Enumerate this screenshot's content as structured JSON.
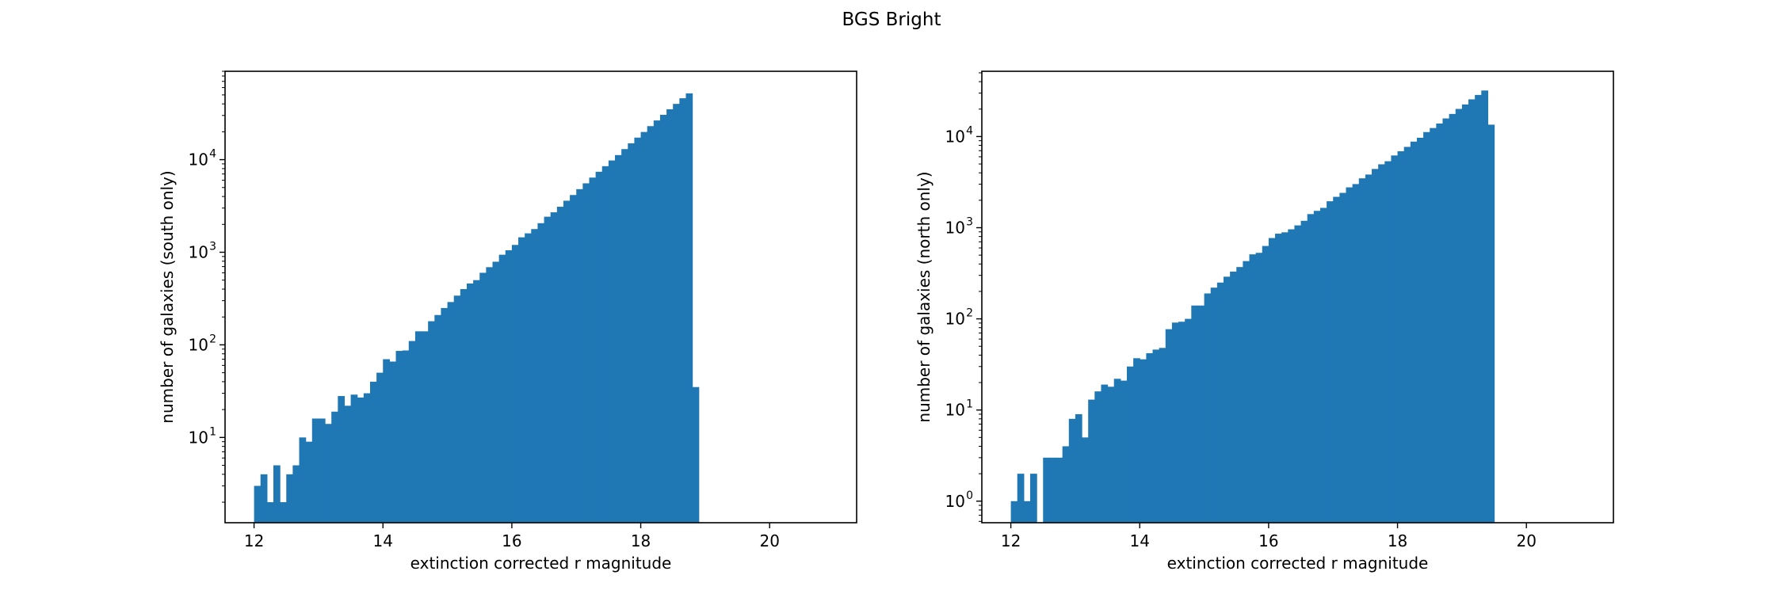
{
  "figure": {
    "title": "BGS Bright"
  },
  "chart_data": [
    {
      "type": "bar",
      "subtype": "histogram",
      "title": "",
      "xlabel": "extinction corrected r magnitude",
      "ylabel": "number of galaxies (south only)",
      "yscale": "log",
      "xlim": [
        11.55,
        21.35
      ],
      "ylim": [
        1.2,
        90000
      ],
      "xticks": [
        12,
        14,
        16,
        18,
        20
      ],
      "xtick_labels": [
        "12",
        "14",
        "16",
        "18",
        "20"
      ],
      "yticks": [
        10,
        100,
        1000,
        10000
      ],
      "ytick_labels": [
        {
          "base": "10",
          "exp": "1"
        },
        {
          "base": "10",
          "exp": "2"
        },
        {
          "base": "10",
          "exp": "3"
        },
        {
          "base": "10",
          "exp": "4"
        }
      ],
      "bin_start": 12.0,
      "bin_width": 0.1,
      "color": "#1f77b4",
      "grid": false,
      "values": [
        3,
        4,
        2,
        5,
        2,
        4,
        5,
        10,
        9,
        16,
        16,
        14,
        19,
        28,
        22,
        29,
        27,
        30,
        40,
        50,
        70,
        66,
        86,
        87,
        110,
        140,
        140,
        180,
        210,
        250,
        290,
        340,
        400,
        460,
        500,
        600,
        690,
        790,
        940,
        1050,
        1200,
        1450,
        1600,
        1780,
        2060,
        2420,
        2700,
        3100,
        3600,
        4150,
        4800,
        5550,
        6400,
        7400,
        8500,
        9800,
        11200,
        13000,
        15000,
        17300,
        19900,
        23000,
        26500,
        30500,
        35000,
        40000,
        46000,
        52000,
        35
      ]
    },
    {
      "type": "bar",
      "subtype": "histogram",
      "title": "",
      "xlabel": "extinction corrected r magnitude",
      "ylabel": "number of galaxies (north only)",
      "yscale": "log",
      "xlim": [
        11.55,
        21.35
      ],
      "ylim": [
        0.58,
        52000
      ],
      "xticks": [
        12,
        14,
        16,
        18,
        20
      ],
      "xtick_labels": [
        "12",
        "14",
        "16",
        "18",
        "20"
      ],
      "yticks": [
        1,
        10,
        100,
        1000,
        10000
      ],
      "ytick_labels": [
        {
          "base": "10",
          "exp": "0"
        },
        {
          "base": "10",
          "exp": "1"
        },
        {
          "base": "10",
          "exp": "2"
        },
        {
          "base": "10",
          "exp": "3"
        },
        {
          "base": "10",
          "exp": "4"
        }
      ],
      "bin_start": 12.0,
      "bin_width": 0.1,
      "color": "#1f77b4",
      "grid": false,
      "values": [
        1,
        2,
        1,
        2,
        0,
        3,
        3,
        3,
        4,
        8,
        9,
        5,
        13,
        16,
        19,
        18,
        22,
        21,
        30,
        37,
        36,
        42,
        46,
        48,
        77,
        91,
        93,
        100,
        140,
        140,
        190,
        220,
        250,
        290,
        330,
        370,
        430,
        510,
        530,
        630,
        770,
        860,
        890,
        960,
        1060,
        1190,
        1410,
        1530,
        1650,
        1950,
        2180,
        2410,
        2770,
        3010,
        3480,
        3830,
        4410,
        4960,
        5360,
        6200,
        6900,
        7700,
        8800,
        9700,
        11200,
        12400,
        13900,
        15800,
        17700,
        20100,
        22500,
        25600,
        28600,
        32000,
        13500
      ]
    }
  ]
}
